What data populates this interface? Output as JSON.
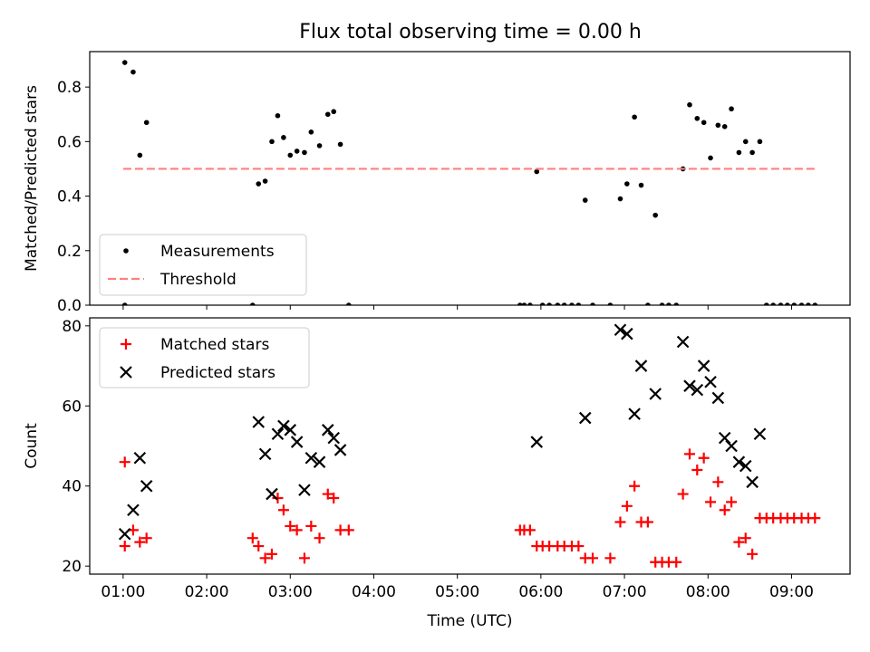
{
  "chart_data": [
    {
      "type": "scatter",
      "title": "Flux total observing time = 0.00 h",
      "xlabel": "",
      "ylabel": "Matched/Predicted stars",
      "xlim": [
        0.6,
        9.7
      ],
      "ylim": [
        0,
        0.93
      ],
      "yticks": [
        0.0,
        0.2,
        0.4,
        0.6,
        0.8
      ],
      "ytick_labels": [
        "0.0",
        "0.2",
        "0.4",
        "0.6",
        "0.8"
      ],
      "grid": false,
      "legend_position": "lower-left",
      "series": [
        {
          "name": "Measurements",
          "marker": "dot",
          "color": "#000000",
          "points": [
            [
              1.02,
              0.89
            ],
            [
              1.02,
              0.0
            ],
            [
              1.12,
              0.855
            ],
            [
              1.2,
              0.55
            ],
            [
              1.28,
              0.67
            ],
            [
              2.55,
              0.0
            ],
            [
              2.62,
              0.445
            ],
            [
              2.7,
              0.455
            ],
            [
              2.78,
              0.6
            ],
            [
              2.85,
              0.695
            ],
            [
              2.92,
              0.615
            ],
            [
              3.0,
              0.55
            ],
            [
              3.08,
              0.565
            ],
            [
              3.17,
              0.56
            ],
            [
              3.25,
              0.635
            ],
            [
              3.35,
              0.585
            ],
            [
              3.45,
              0.7
            ],
            [
              3.52,
              0.71
            ],
            [
              3.6,
              0.59
            ],
            [
              3.7,
              0.0
            ],
            [
              5.75,
              0.0
            ],
            [
              5.8,
              0.0
            ],
            [
              5.87,
              0.0
            ],
            [
              5.95,
              0.49
            ],
            [
              6.02,
              0.0
            ],
            [
              6.1,
              0.0
            ],
            [
              6.2,
              0.0
            ],
            [
              6.28,
              0.0
            ],
            [
              6.37,
              0.0
            ],
            [
              6.45,
              0.0
            ],
            [
              6.53,
              0.385
            ],
            [
              6.62,
              0.0
            ],
            [
              6.83,
              0.0
            ],
            [
              6.95,
              0.39
            ],
            [
              7.03,
              0.445
            ],
            [
              7.12,
              0.69
            ],
            [
              7.2,
              0.44
            ],
            [
              7.28,
              0.0
            ],
            [
              7.37,
              0.33
            ],
            [
              7.45,
              0.0
            ],
            [
              7.53,
              0.0
            ],
            [
              7.62,
              0.0
            ],
            [
              7.7,
              0.5
            ],
            [
              7.78,
              0.735
            ],
            [
              7.87,
              0.685
            ],
            [
              7.95,
              0.67
            ],
            [
              8.03,
              0.54
            ],
            [
              8.12,
              0.66
            ],
            [
              8.2,
              0.655
            ],
            [
              8.28,
              0.72
            ],
            [
              8.37,
              0.56
            ],
            [
              8.45,
              0.6
            ],
            [
              8.53,
              0.56
            ],
            [
              8.62,
              0.6
            ],
            [
              8.7,
              0.0
            ],
            [
              8.78,
              0.0
            ],
            [
              8.87,
              0.0
            ],
            [
              8.95,
              0.0
            ],
            [
              9.03,
              0.0
            ],
            [
              9.12,
              0.0
            ],
            [
              9.2,
              0.0
            ],
            [
              9.28,
              0.0
            ]
          ]
        },
        {
          "name": "Threshold",
          "marker": "dashed-line",
          "color": "#ff7f7f",
          "points": [
            [
              1.0,
              0.5
            ],
            [
              9.3,
              0.5
            ]
          ]
        }
      ]
    },
    {
      "type": "scatter",
      "title": "",
      "xlabel": "Time (UTC)",
      "ylabel": "Count",
      "xlim": [
        0.6,
        9.7
      ],
      "ylim": [
        18,
        82
      ],
      "yticks": [
        20,
        40,
        60,
        80
      ],
      "ytick_labels": [
        "20",
        "40",
        "60",
        "80"
      ],
      "xticks": [
        1,
        2,
        3,
        4,
        5,
        6,
        7,
        8,
        9
      ],
      "xtick_labels": [
        "01:00",
        "02:00",
        "03:00",
        "04:00",
        "05:00",
        "06:00",
        "07:00",
        "08:00",
        "09:00"
      ],
      "grid": false,
      "legend_position": "top-left",
      "series": [
        {
          "name": "Matched stars",
          "marker": "plus",
          "color": "#ff0000",
          "points": [
            [
              1.02,
              46
            ],
            [
              1.02,
              25
            ],
            [
              1.12,
              29
            ],
            [
              1.2,
              26
            ],
            [
              1.28,
              27
            ],
            [
              2.55,
              27
            ],
            [
              2.62,
              25
            ],
            [
              2.7,
              22
            ],
            [
              2.78,
              23
            ],
            [
              2.85,
              37
            ],
            [
              2.92,
              34
            ],
            [
              3.0,
              30
            ],
            [
              3.08,
              29
            ],
            [
              3.17,
              22
            ],
            [
              3.25,
              30
            ],
            [
              3.35,
              27
            ],
            [
              3.45,
              38
            ],
            [
              3.52,
              37
            ],
            [
              3.6,
              29
            ],
            [
              3.7,
              29
            ],
            [
              5.75,
              29
            ],
            [
              5.8,
              29
            ],
            [
              5.87,
              29
            ],
            [
              5.95,
              25
            ],
            [
              6.02,
              25
            ],
            [
              6.1,
              25
            ],
            [
              6.2,
              25
            ],
            [
              6.28,
              25
            ],
            [
              6.37,
              25
            ],
            [
              6.45,
              25
            ],
            [
              6.53,
              22
            ],
            [
              6.62,
              22
            ],
            [
              6.83,
              22
            ],
            [
              6.95,
              31
            ],
            [
              7.03,
              35
            ],
            [
              7.12,
              40
            ],
            [
              7.2,
              31
            ],
            [
              7.28,
              31
            ],
            [
              7.37,
              21
            ],
            [
              7.45,
              21
            ],
            [
              7.53,
              21
            ],
            [
              7.62,
              21
            ],
            [
              7.7,
              38
            ],
            [
              7.78,
              48
            ],
            [
              7.87,
              44
            ],
            [
              7.95,
              47
            ],
            [
              8.03,
              36
            ],
            [
              8.12,
              41
            ],
            [
              8.2,
              34
            ],
            [
              8.28,
              36
            ],
            [
              8.37,
              26
            ],
            [
              8.45,
              27
            ],
            [
              8.53,
              23
            ],
            [
              8.62,
              32
            ],
            [
              8.7,
              32
            ],
            [
              8.78,
              32
            ],
            [
              8.87,
              32
            ],
            [
              8.95,
              32
            ],
            [
              9.03,
              32
            ],
            [
              9.12,
              32
            ],
            [
              9.2,
              32
            ],
            [
              9.28,
              32
            ]
          ]
        },
        {
          "name": "Predicted stars",
          "marker": "x",
          "color": "#000000",
          "points": [
            [
              1.02,
              28
            ],
            [
              1.12,
              34
            ],
            [
              1.2,
              47
            ],
            [
              1.28,
              40
            ],
            [
              2.62,
              56
            ],
            [
              2.7,
              48
            ],
            [
              2.78,
              38
            ],
            [
              2.85,
              53
            ],
            [
              2.92,
              55
            ],
            [
              3.0,
              54
            ],
            [
              3.08,
              51
            ],
            [
              3.17,
              39
            ],
            [
              3.25,
              47
            ],
            [
              3.35,
              46
            ],
            [
              3.45,
              54
            ],
            [
              3.52,
              52
            ],
            [
              3.6,
              49
            ],
            [
              5.95,
              51
            ],
            [
              6.53,
              57
            ],
            [
              6.95,
              79
            ],
            [
              7.03,
              78
            ],
            [
              7.12,
              58
            ],
            [
              7.2,
              70
            ],
            [
              7.37,
              63
            ],
            [
              7.7,
              76
            ],
            [
              7.78,
              65
            ],
            [
              7.87,
              64
            ],
            [
              7.95,
              70
            ],
            [
              8.03,
              66
            ],
            [
              8.12,
              62
            ],
            [
              8.2,
              52
            ],
            [
              8.28,
              50
            ],
            [
              8.37,
              46
            ],
            [
              8.45,
              45
            ],
            [
              8.53,
              41
            ],
            [
              8.62,
              53
            ]
          ]
        }
      ]
    }
  ]
}
